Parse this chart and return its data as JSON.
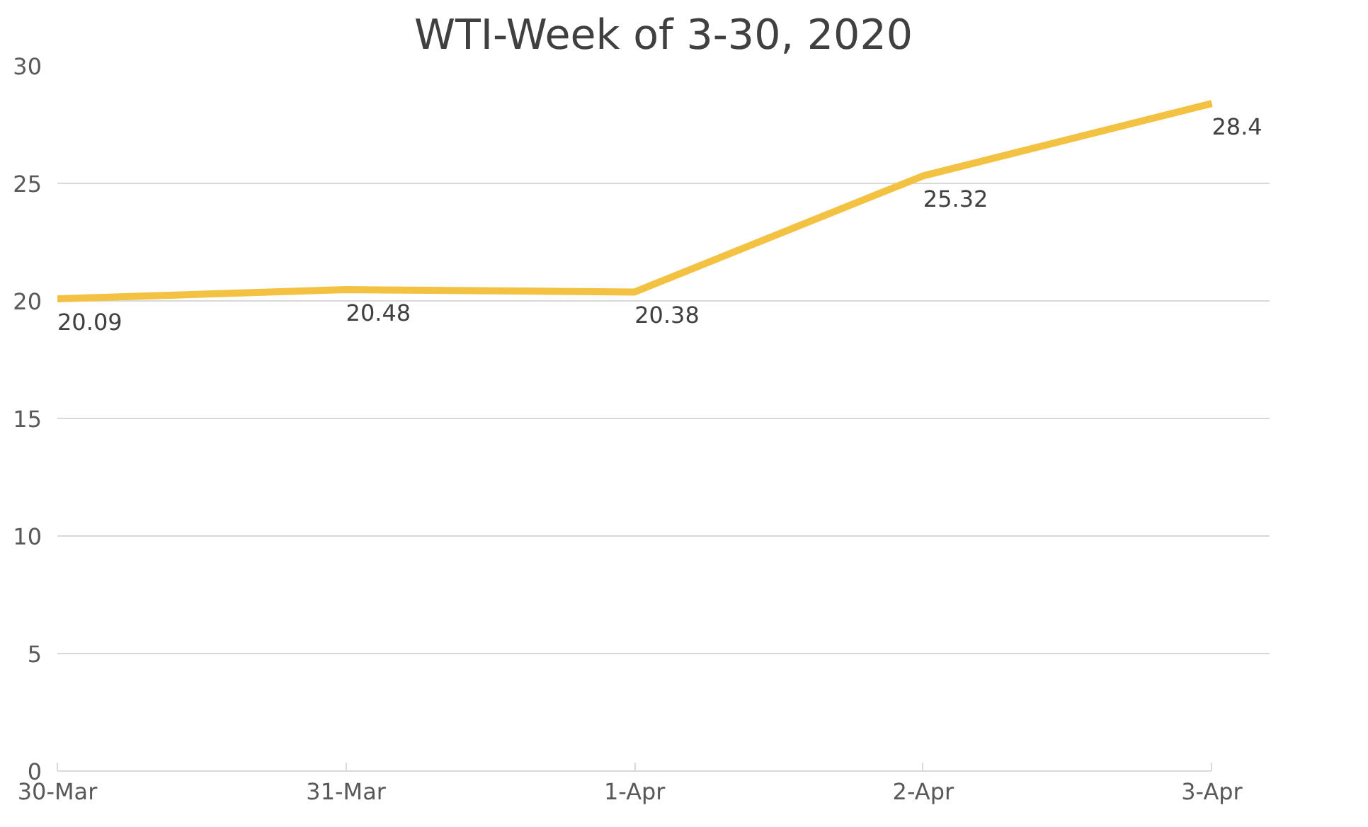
{
  "chart_data": {
    "type": "line",
    "title": "WTI-Week of 3-30, 2020",
    "categories": [
      "30-Mar",
      "31-Mar",
      "1-Apr",
      "2-Apr",
      "3-Apr"
    ],
    "series": [
      {
        "color": "#f4c242",
        "values": [
          20.09,
          20.48,
          20.38,
          25.32,
          28.4
        ]
      }
    ],
    "ylim": [
      0,
      30
    ],
    "yticks": [
      0,
      5,
      10,
      15,
      20,
      25,
      30
    ],
    "grid": "y",
    "data_labels": true,
    "marker": "none",
    "line_style": "solid"
  }
}
